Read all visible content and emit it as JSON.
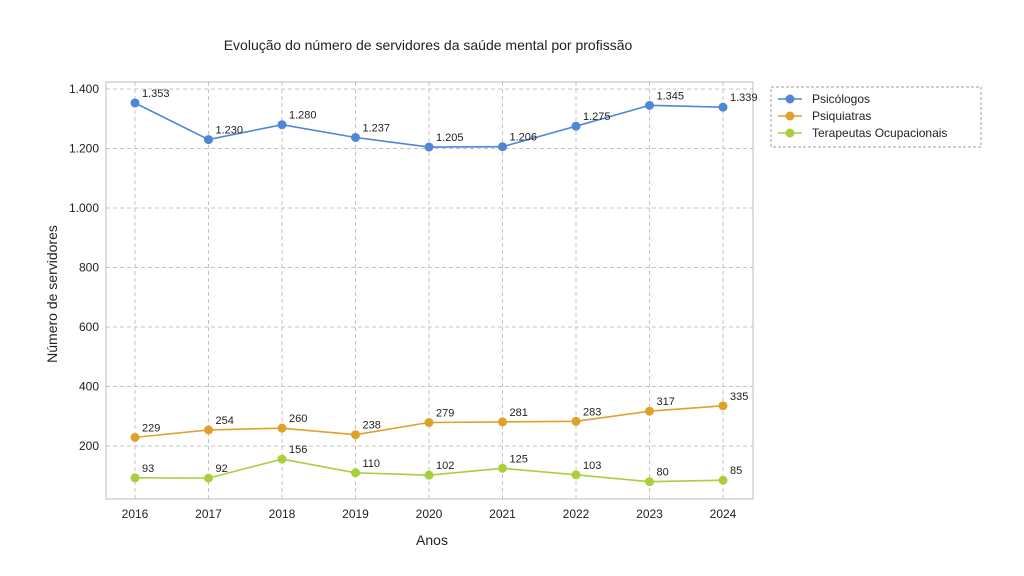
{
  "chart_data": {
    "type": "line",
    "title": "Evolução do número de servidores da saúde mental por profissão",
    "xlabel": "Anos",
    "ylabel": "Número de servidores",
    "x": [
      "2016",
      "2017",
      "2018",
      "2019",
      "2020",
      "2021",
      "2022",
      "2023",
      "2024"
    ],
    "ylim": [
      20,
      1420
    ],
    "yticks": [
      200,
      400,
      600,
      800,
      1000,
      1200,
      1400
    ],
    "ytick_labels": [
      "200",
      "400",
      "600",
      "800",
      "1.000",
      "1.200",
      "1.400"
    ],
    "grid": true,
    "legend_position": "outside-right",
    "series": [
      {
        "name": "Psicólogos",
        "color": "#4f86d6",
        "values": [
          1353,
          1230,
          1280,
          1237,
          1205,
          1206,
          1275,
          1345,
          1339
        ],
        "labels": [
          "1.353",
          "1.230",
          "1.280",
          "1.237",
          "1.205",
          "1.206",
          "1.275",
          "1.345",
          "1.339"
        ]
      },
      {
        "name": "Psiquiatras",
        "color": "#e0a12b",
        "values": [
          229,
          254,
          260,
          238,
          279,
          281,
          283,
          317,
          335
        ],
        "labels": [
          "229",
          "254",
          "260",
          "238",
          "279",
          "281",
          "283",
          "317",
          "335"
        ]
      },
      {
        "name": "Terapeutas Ocupacionais",
        "color": "#a8cf3c",
        "values": [
          93,
          92,
          156,
          110,
          102,
          125,
          103,
          80,
          85
        ],
        "labels": [
          "93",
          "92",
          "156",
          "110",
          "102",
          "125",
          "103",
          "80",
          "85"
        ]
      }
    ]
  }
}
